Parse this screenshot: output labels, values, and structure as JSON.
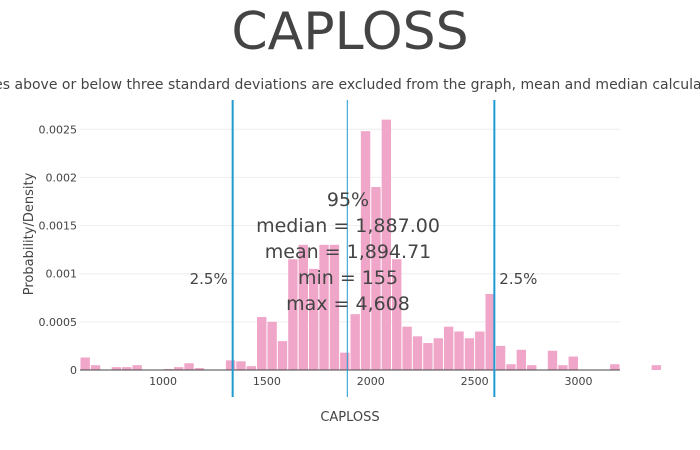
{
  "title": "CAPLOSS",
  "subtitle": "Values above or below three standard deviations are excluded from the graph, mean and median calculations",
  "colors": {
    "bar": "#f0a6c8",
    "lines": "#1f9bd1",
    "grid": "#eeeeee",
    "text": "#444444"
  },
  "chart_data": {
    "type": "bar",
    "xlabel": "CAPLOSS",
    "ylabel": "Probability/Density",
    "xlim": [
      600,
      3200
    ],
    "ylim": [
      0,
      0.0027
    ],
    "x_ticks": [
      1000,
      1500,
      2000,
      2500,
      3000
    ],
    "x_tick_labels": [
      "1000",
      "1500",
      "2000",
      "2500",
      "3000"
    ],
    "y_ticks": [
      0,
      0.0005,
      0.001,
      0.0015,
      0.002,
      0.0025
    ],
    "y_tick_labels": [
      "0",
      "0.0005",
      "0.001",
      "0.0015",
      "0.002",
      "0.0025"
    ],
    "bin_start": 600,
    "bin_width": 50,
    "values": [
      0.00013,
      5e-05,
      0,
      3e-05,
      3e-05,
      5e-05,
      0,
      0,
      1e-05,
      3e-05,
      7e-05,
      2e-05,
      0,
      0,
      0.0001,
      9e-05,
      4e-05,
      0.00055,
      0.0005,
      0.0003,
      0.00115,
      0.0013,
      0.00105,
      0.0013,
      0.0013,
      0.00018,
      0.00058,
      0.00248,
      0.0019,
      0.0026,
      0.00115,
      0.00045,
      0.00035,
      0.00028,
      0.00033,
      0.00045,
      0.0004,
      0.00033,
      0.0004,
      0.00079,
      0.00025,
      6e-05,
      0.00021,
      5e-05,
      0,
      0.0002,
      5e-05,
      0.00014,
      0,
      0,
      0,
      6e-05,
      0,
      0,
      0,
      5e-05
    ],
    "vlines": [
      {
        "x": 1335,
        "label": "2.5%",
        "label_side": "left"
      },
      {
        "x": 1887,
        "label": ""
      },
      {
        "x": 2595,
        "label": "2.5%",
        "label_side": "right"
      }
    ],
    "annotation": [
      "95%",
      "median = 1,887.00",
      "mean = 1,894.71",
      "min = 155",
      "max = 4,608"
    ]
  }
}
